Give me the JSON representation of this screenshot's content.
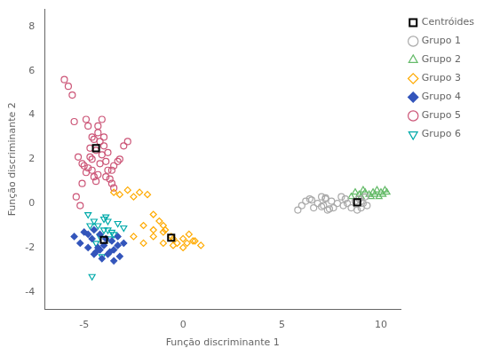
{
  "chart_data": {
    "type": "scatter",
    "xlabel": "Função discriminante 1",
    "ylabel": "Função discriminante 2",
    "xlim": [
      -7,
      11
    ],
    "ylim": [
      -4.8,
      8.8
    ],
    "xticks": [
      -5,
      0,
      5,
      10
    ],
    "yticks": [
      -4,
      -2,
      0,
      2,
      4,
      6,
      8
    ],
    "grid": false,
    "legend": "right",
    "series": [
      {
        "name": "Grupo 1",
        "color": "#aaaaaa",
        "marker": "circle",
        "x": [
          5.8,
          6.0,
          6.2,
          6.4,
          6.6,
          6.8,
          7.0,
          7.1,
          7.2,
          7.3,
          7.5,
          7.6,
          7.8,
          8.0,
          8.1,
          8.2,
          8.3,
          8.5,
          8.7,
          8.8,
          8.9,
          9.0,
          9.0,
          9.1,
          9.2,
          9.3,
          6.5,
          7.0,
          7.2,
          7.4
        ],
        "values": [
          -0.3,
          -0.1,
          0.1,
          0.2,
          -0.2,
          0.0,
          0.3,
          -0.1,
          0.2,
          -0.3,
          0.1,
          -0.2,
          0.0,
          0.3,
          -0.1,
          0.2,
          0.0,
          -0.2,
          0.1,
          -0.3,
          0.2,
          0.1,
          -0.2,
          0.0,
          0.3,
          -0.1,
          0.15,
          -0.15,
          0.25,
          -0.25
        ]
      },
      {
        "name": "Grupo 2",
        "color": "#66bb6a",
        "marker": "triangle-up",
        "x": [
          8.5,
          8.7,
          8.9,
          9.0,
          9.1,
          9.2,
          9.4,
          9.5,
          9.6,
          9.7,
          9.8,
          9.9,
          10.0,
          10.1,
          10.2,
          10.3
        ],
        "values": [
          0.3,
          0.5,
          0.4,
          0.3,
          0.6,
          0.5,
          0.4,
          0.3,
          0.5,
          0.4,
          0.6,
          0.3,
          0.5,
          0.4,
          0.6,
          0.5
        ]
      },
      {
        "name": "Grupo 3",
        "color": "#ffaa00",
        "marker": "diamond",
        "x": [
          -3.5,
          -3.2,
          -2.8,
          -2.5,
          -2.2,
          -1.8,
          -1.5,
          -1.2,
          -0.9,
          -0.6,
          -0.3,
          0.0,
          0.3,
          0.6,
          0.9,
          -1.0,
          -0.5,
          0.2,
          -2.0,
          -1.5,
          -1.0,
          -0.5,
          0.0,
          0.5,
          -2.5,
          -2.0,
          -1.5,
          -1.0
        ],
        "values": [
          0.5,
          0.4,
          0.6,
          0.3,
          0.5,
          0.4,
          -0.5,
          -0.8,
          -1.2,
          -1.5,
          -1.8,
          -1.6,
          -1.4,
          -1.7,
          -1.9,
          -1.3,
          -1.6,
          -1.8,
          -1.0,
          -1.5,
          -1.8,
          -1.9,
          -2.0,
          -1.7,
          -1.5,
          -1.8,
          -1.2,
          -1.0
        ]
      },
      {
        "name": "Grupo 4",
        "color": "#3355bb",
        "marker": "diamond-filled",
        "x": [
          -5.5,
          -5.2,
          -5.0,
          -4.8,
          -4.6,
          -4.4,
          -4.2,
          -4.0,
          -3.8,
          -3.6,
          -3.5,
          -3.3,
          -3.2,
          -3.0,
          -4.5,
          -4.3,
          -4.1,
          -3.9,
          -3.7,
          -3.5,
          -3.3,
          -4.8,
          -4.5,
          -4.2
        ],
        "values": [
          -1.5,
          -1.8,
          -1.3,
          -2.0,
          -1.6,
          -2.2,
          -1.4,
          -1.9,
          -2.3,
          -1.7,
          -2.1,
          -1.5,
          -2.4,
          -1.8,
          -1.2,
          -2.0,
          -2.5,
          -1.6,
          -2.2,
          -2.6,
          -1.9,
          -1.4,
          -2.3,
          -2.1
        ]
      },
      {
        "name": "Grupo 5",
        "color": "#cc5577",
        "marker": "circle",
        "x": [
          -6.0,
          -5.8,
          -5.6,
          -5.5,
          -5.3,
          -5.1,
          -4.9,
          -4.8,
          -4.7,
          -4.6,
          -4.5,
          -4.4,
          -4.3,
          -4.2,
          -4.1,
          -4.0,
          -3.9,
          -3.8,
          -3.7,
          -3.6,
          -3.5,
          -4.0,
          -4.2,
          -4.4,
          -4.6,
          -4.8,
          -4.3,
          -4.5,
          -4.7,
          -5.0,
          -5.2,
          -5.4,
          -4.1,
          -4.3,
          -4.6,
          -3.8,
          -4.9,
          -5.1,
          -3.5,
          -3.2,
          -3.0,
          -2.8,
          -3.3,
          -3.6,
          -3.9
        ],
        "values": [
          5.6,
          5.3,
          4.9,
          3.7,
          2.1,
          1.8,
          3.8,
          3.5,
          2.5,
          1.5,
          1.2,
          1.0,
          1.3,
          1.8,
          2.2,
          2.6,
          1.9,
          1.5,
          1.1,
          0.9,
          0.7,
          3.0,
          2.8,
          2.4,
          2.0,
          1.6,
          3.2,
          2.9,
          2.1,
          1.7,
          -0.1,
          0.3,
          3.8,
          3.5,
          3.0,
          2.3,
          1.4,
          0.9,
          1.7,
          2.0,
          2.6,
          2.8,
          1.9,
          1.5,
          1.2
        ]
      },
      {
        "name": "Grupo 6",
        "color": "#00aaaa",
        "marker": "triangle-down",
        "x": [
          -4.8,
          -4.5,
          -4.3,
          -4.0,
          -3.8,
          -3.5,
          -3.3,
          -3.0,
          -4.2,
          -3.9,
          -3.6,
          -4.6,
          -4.1,
          -3.7,
          -4.4,
          -4.7,
          -4.0,
          -3.8
        ],
        "values": [
          -0.5,
          -0.8,
          -1.0,
          -0.7,
          -1.2,
          -1.4,
          -0.9,
          -1.1,
          -1.5,
          -0.6,
          -1.3,
          -3.3,
          -2.4,
          -1.6,
          -1.8,
          -1.0,
          -1.2,
          -0.8
        ]
      },
      {
        "name": "Centróides",
        "color": "black",
        "marker": "square",
        "x": [
          -4.4,
          -4.0,
          -0.6,
          8.8
        ],
        "values": [
          2.5,
          -1.65,
          -1.55,
          0.05
        ]
      }
    ]
  }
}
